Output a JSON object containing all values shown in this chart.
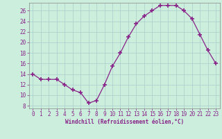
{
  "x": [
    0,
    1,
    2,
    3,
    4,
    5,
    6,
    7,
    8,
    9,
    10,
    11,
    12,
    13,
    14,
    15,
    16,
    17,
    18,
    19,
    20,
    21,
    22,
    23
  ],
  "y": [
    14,
    13,
    13,
    13,
    12,
    11,
    10.5,
    8.5,
    9,
    12,
    15.5,
    18,
    21,
    23.5,
    25,
    26,
    27,
    27,
    27,
    26,
    24.5,
    21.5,
    18.5,
    16
  ],
  "line_color": "#882288",
  "marker": "+",
  "marker_size": 4,
  "marker_linewidth": 1.2,
  "background_color": "#CCEEDD",
  "grid_color": "#AACCCC",
  "xlabel": "Windchill (Refroidissement éolien,°C)",
  "xlabel_fontsize": 5.5,
  "ylabel_ticks": [
    8,
    10,
    12,
    14,
    16,
    18,
    20,
    22,
    24,
    26
  ],
  "xlim": [
    -0.5,
    23.5
  ],
  "ylim": [
    7.5,
    27.5
  ],
  "xtick_labels": [
    "0",
    "1",
    "2",
    "3",
    "4",
    "5",
    "6",
    "7",
    "8",
    "9",
    "10",
    "11",
    "12",
    "13",
    "14",
    "15",
    "16",
    "17",
    "18",
    "19",
    "20",
    "21",
    "22",
    "23"
  ],
  "tick_fontsize": 5.5,
  "tick_color": "#882288",
  "spine_color": "#888888",
  "line_width": 0.9
}
